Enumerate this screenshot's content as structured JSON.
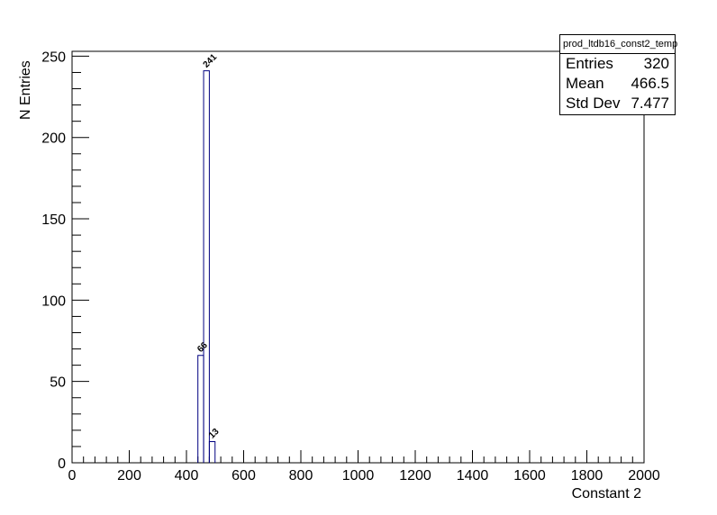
{
  "chart_data": {
    "type": "bar",
    "histogram_name": "prod_ltdb16_const2_temp",
    "xlabel": "Constant 2",
    "ylabel": "N Entries",
    "xlim": [
      0,
      2000
    ],
    "ylim": [
      0,
      253
    ],
    "x_ticks": [
      "0",
      "200",
      "400",
      "600",
      "800",
      "1000",
      "1200",
      "1400",
      "1600",
      "1800",
      "2000"
    ],
    "y_ticks": [
      "0",
      "50",
      "100",
      "150",
      "200",
      "250"
    ],
    "bin_width": 20,
    "bins": [
      {
        "x_low": 440,
        "x_high": 460,
        "value": 66,
        "label": "66"
      },
      {
        "x_low": 460,
        "x_high": 480,
        "value": 241,
        "label": "241"
      },
      {
        "x_low": 480,
        "x_high": 500,
        "value": 13,
        "label": "13"
      }
    ],
    "line_color": "#000080",
    "grid": false,
    "legend": "none"
  },
  "stats": {
    "title": "prod_ltdb16_const2_temp",
    "rows": [
      {
        "label": "Entries",
        "value": "320"
      },
      {
        "label": "Mean",
        "value": "466.5"
      },
      {
        "label": "Std Dev",
        "value": "7.477"
      }
    ]
  }
}
